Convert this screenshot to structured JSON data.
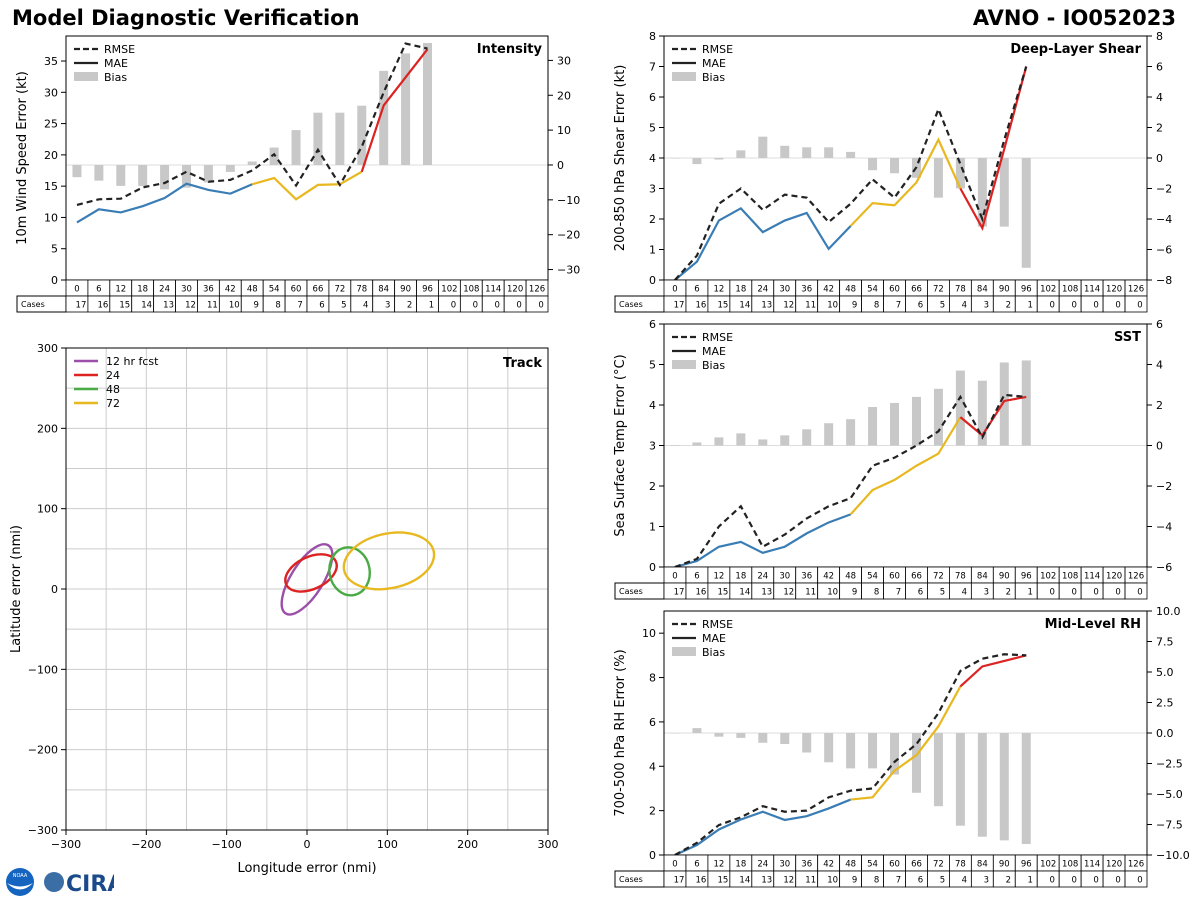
{
  "header": {
    "title_left": "Model Diagnostic Verification",
    "title_right": "AVNO - IO052023"
  },
  "logos": {
    "cira": "CIRA",
    "noaa": "NOAA"
  },
  "legend": {
    "rmse": "RMSE",
    "mae": "MAE",
    "bias": "Bias"
  },
  "hours": [
    0,
    6,
    12,
    18,
    24,
    30,
    36,
    42,
    48,
    54,
    60,
    66,
    72,
    78,
    84,
    90,
    96,
    102,
    108,
    114,
    120,
    126
  ],
  "cases_label": "Cases",
  "cases": [
    17,
    16,
    15,
    14,
    13,
    12,
    11,
    10,
    9,
    8,
    7,
    6,
    5,
    4,
    3,
    2,
    1,
    0,
    0,
    0,
    0,
    0
  ],
  "colors": {
    "rmse": "#222222",
    "mae_early": "#3a7db5",
    "mae_mid": "#e8b820",
    "mae_late": "#dd2222",
    "bias": "#c8c8c8",
    "grid": "#cccccc"
  },
  "chart_data": [
    {
      "id": "intensity",
      "type": "line+bar",
      "title": "Intensity",
      "ylabel": "10m Wind Speed Error (kt)",
      "ylim": [
        0,
        39
      ],
      "yticks": [
        0,
        5,
        10,
        15,
        20,
        25,
        30,
        35
      ],
      "y2lim": [
        -33,
        37
      ],
      "y2ticks": [
        -30,
        -20,
        -10,
        0,
        10,
        20,
        30
      ],
      "rmse": [
        12.0,
        12.9,
        13.0,
        14.8,
        15.5,
        17.3,
        15.7,
        16.0,
        17.5,
        20.1,
        15.1,
        20.8,
        15.2,
        21.3,
        30.0,
        37.8,
        37.0
      ],
      "mae": [
        9.2,
        11.3,
        10.8,
        11.8,
        13.1,
        15.4,
        14.4,
        13.8,
        15.3,
        16.3,
        12.9,
        15.2,
        15.3,
        17.3,
        27.9,
        32.4,
        36.9
      ],
      "bias": [
        -3.5,
        -4.5,
        -6,
        -6,
        -7,
        -6.5,
        -5,
        -2,
        1,
        5,
        10,
        15,
        15,
        17,
        27,
        32,
        35
      ]
    },
    {
      "id": "shear",
      "type": "line+bar",
      "title": "Deep-Layer Shear",
      "ylabel": "200-850 hPa Shear Error (kt)",
      "ylim": [
        0,
        8
      ],
      "yticks": [
        0,
        1,
        2,
        3,
        4,
        5,
        6,
        7,
        8
      ],
      "y2lim": [
        -8,
        8
      ],
      "y2ticks": [
        -8,
        -6,
        -4,
        -2,
        0,
        2,
        4,
        6,
        8
      ],
      "rmse": [
        0.0,
        0.8,
        2.5,
        3.0,
        2.3,
        2.8,
        2.7,
        1.9,
        2.5,
        3.3,
        2.7,
        3.7,
        5.6,
        3.8,
        2.0,
        4.6,
        7.0
      ],
      "mae": [
        0.0,
        0.6,
        1.95,
        2.35,
        1.57,
        1.95,
        2.2,
        1.02,
        1.77,
        2.52,
        2.45,
        3.2,
        4.6,
        3.0,
        1.7,
        4.3,
        7.0
      ],
      "bias": [
        0,
        -0.4,
        -0.1,
        0.5,
        1.4,
        0.8,
        0.7,
        0.7,
        0.4,
        -0.8,
        -1.0,
        -1.3,
        -2.6,
        -2.0,
        -4.5,
        -4.5,
        -7.2
      ]
    },
    {
      "id": "sst",
      "type": "line+bar",
      "title": "SST",
      "ylabel": "Sea Surface Temp Error (°C)",
      "ylim": [
        0,
        6
      ],
      "yticks": [
        0,
        1,
        2,
        3,
        4,
        5,
        6
      ],
      "y2lim": [
        -6,
        6
      ],
      "y2ticks": [
        -6,
        -4,
        -2,
        0,
        2,
        4,
        6
      ],
      "rmse": [
        0.0,
        0.2,
        1.0,
        1.5,
        0.5,
        0.8,
        1.2,
        1.5,
        1.7,
        2.5,
        2.7,
        3.0,
        3.35,
        4.2,
        3.2,
        4.25,
        4.2
      ],
      "mae": [
        0.0,
        0.15,
        0.5,
        0.62,
        0.35,
        0.5,
        0.83,
        1.1,
        1.3,
        1.9,
        2.15,
        2.5,
        2.8,
        3.7,
        3.25,
        4.1,
        4.2
      ],
      "bias": [
        0,
        0.15,
        0.4,
        0.6,
        0.3,
        0.5,
        0.8,
        1.1,
        1.3,
        1.9,
        2.1,
        2.4,
        2.8,
        3.7,
        3.2,
        4.1,
        4.2
      ]
    },
    {
      "id": "rh",
      "type": "line+bar",
      "title": "Mid-Level RH",
      "ylabel": "700-500 hPa RH Error (%)",
      "ylim": [
        0,
        11
      ],
      "yticks": [
        0,
        2,
        4,
        6,
        8,
        10
      ],
      "y2lim": [
        -10,
        10
      ],
      "y2ticks": [
        -10.0,
        -7.5,
        -5.0,
        -2.5,
        0.0,
        2.5,
        5.0,
        7.5,
        10.0
      ],
      "rmse": [
        0.0,
        0.55,
        1.35,
        1.7,
        2.2,
        1.95,
        2.0,
        2.6,
        2.9,
        3.0,
        4.2,
        5.0,
        6.4,
        8.3,
        8.85,
        9.05,
        9.0
      ],
      "mae": [
        0.0,
        0.45,
        1.15,
        1.6,
        1.95,
        1.58,
        1.75,
        2.1,
        2.5,
        2.6,
        3.8,
        4.5,
        5.8,
        7.6,
        8.5,
        8.75,
        9.0
      ],
      "bias": [
        0,
        0.4,
        -0.3,
        -0.4,
        -0.8,
        -0.9,
        -1.6,
        -2.4,
        -2.9,
        -2.9,
        -3.4,
        -4.9,
        -6.0,
        -7.6,
        -8.5,
        -8.8,
        -9.1
      ]
    },
    {
      "id": "track",
      "type": "ellipse",
      "title": "Track",
      "xlabel": "Longitude error (nmi)",
      "ylabel": "Latitude error (nmi)",
      "xlim": [
        -300,
        300
      ],
      "ylim": [
        -300,
        300
      ],
      "xticks": [
        -300,
        -200,
        -100,
        0,
        100,
        200,
        300
      ],
      "yticks": [
        -300,
        -200,
        -100,
        0,
        100,
        200,
        300
      ],
      "legend_title": "12 hr fcst",
      "ellipses": [
        {
          "label": "12 hr fcst",
          "cx": 0,
          "cy": 12,
          "a": 50,
          "b": 20,
          "angle": 58,
          "color": "#9b4fa8"
        },
        {
          "label": "24",
          "cx": 5,
          "cy": 20,
          "a": 34,
          "b": 20,
          "angle": 25,
          "color": "#dd2222"
        },
        {
          "label": "48",
          "cx": 53,
          "cy": 22,
          "a": 30,
          "b": 25,
          "angle": 100,
          "color": "#4aaa44"
        },
        {
          "label": "72",
          "cx": 102,
          "cy": 35,
          "a": 57,
          "b": 34,
          "angle": 12,
          "color": "#e8b820"
        }
      ]
    }
  ]
}
